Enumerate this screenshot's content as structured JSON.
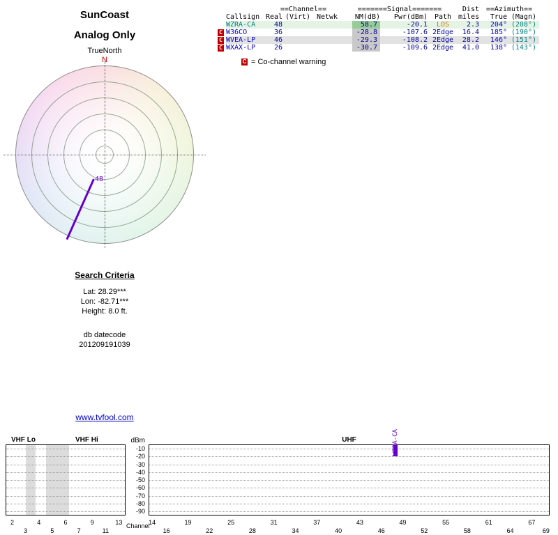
{
  "page": {
    "title1": "SunCoast",
    "title2": "Analog Only",
    "orientation": "TrueNorth",
    "link": "www.tvfool.com"
  },
  "colors": {
    "signal_purple": "#6600cc",
    "warning_red": "#c00000",
    "nm_highlight_green": "#96cc96",
    "link_blue": "#0000cc"
  },
  "polar": {
    "north": "N"
  },
  "table": {
    "groups": {
      "channel": "==Channel==",
      "signal": "=======Signal=======",
      "dist": "Dist",
      "azimuth": "==Azimuth=="
    },
    "cols": {
      "callsign": "Callsign",
      "real": "Real",
      "virt": "(Virt)",
      "netwk": "Netwk",
      "nm": "NM(dB)",
      "pwr": "Pwr(dBm)",
      "path": "Path",
      "miles": "miles",
      "true": "True",
      "magn": "(Magn)"
    },
    "rows": [
      {
        "flag": "",
        "callsign": "WZRA-CA",
        "real": "48",
        "virt": "",
        "netwk": "",
        "nm": "58.7",
        "pwr": "-20.1",
        "path": "LOS",
        "miles": "2.3",
        "true": "204°",
        "magn": "(208°)"
      },
      {
        "flag": "C",
        "callsign": "W36CO",
        "real": "36",
        "virt": "",
        "netwk": "",
        "nm": "-28.8",
        "pwr": "-107.6",
        "path": "2Edge",
        "miles": "16.4",
        "true": "185°",
        "magn": "(190°)"
      },
      {
        "flag": "C",
        "callsign": "WVEA-LP",
        "real": "46",
        "virt": "",
        "netwk": "",
        "nm": "-29.3",
        "pwr": "-108.2",
        "path": "2Edge",
        "miles": "28.2",
        "true": "146°",
        "magn": "(151°)"
      },
      {
        "flag": "C",
        "callsign": "WXAX-LP",
        "real": "26",
        "virt": "",
        "netwk": "",
        "nm": "-30.7",
        "pwr": "-109.6",
        "path": "2Edge",
        "miles": "41.0",
        "true": "138°",
        "magn": "(143°)"
      }
    ],
    "legend_flag": "C",
    "legend_text": "= Co-channel warning"
  },
  "search": {
    "heading": "Search Criteria",
    "lat": "Lat: 28.29***",
    "lon": "Lon: -82.71***",
    "height": "Height: 8.0 ft.",
    "db_line1": "db datecode",
    "db_line2": "201209191039"
  },
  "spectrum": {
    "ylabel": "dBm",
    "xlabel": "Channel",
    "band_labels": {
      "vhf_lo": "VHF Lo",
      "vhf_hi": "VHF Hi",
      "uhf": "UHF"
    }
  },
  "chart_data": [
    {
      "type": "polar-radar",
      "title": "SunCoast Analog Only",
      "reference": "TrueNorth",
      "rings": 6,
      "beams": [
        {
          "channel": 48,
          "callsign": "WZRA-CA",
          "azimuth_true_deg": 204,
          "azimuth_magn_deg": 208,
          "color": "#6600cc"
        }
      ]
    },
    {
      "type": "bar",
      "xlabel": "Channel",
      "ylabel": "dBm",
      "ylim": [
        -95,
        -5
      ],
      "yticks": [
        -10,
        -20,
        -30,
        -40,
        -50,
        -60,
        -70,
        -80,
        -90
      ],
      "vhf_channels": [
        2,
        3,
        4,
        5,
        6,
        7,
        9,
        11,
        13
      ],
      "uhf_channels": [
        14,
        16,
        19,
        22,
        25,
        28,
        31,
        34,
        37,
        40,
        43,
        46,
        49,
        52,
        55,
        58,
        61,
        64,
        67,
        69
      ],
      "uhf_range": [
        14,
        69
      ],
      "gray_bands_pct": [
        [
          17,
          8
        ],
        [
          34,
          19
        ]
      ],
      "grid": true,
      "signals": [
        {
          "callsign": "WZRA-CA",
          "channel": 48,
          "power_dbm": -20.1,
          "color": "#6600cc"
        }
      ]
    }
  ]
}
